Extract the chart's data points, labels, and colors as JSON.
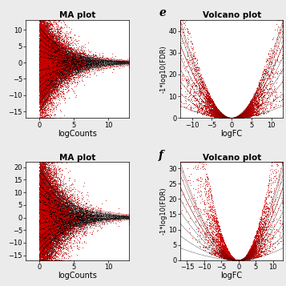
{
  "panels": [
    {
      "type": "MA",
      "title": "MA plot",
      "xlabel": "logCounts",
      "ylabel": "",
      "xlim": [
        -2,
        13
      ],
      "ylim": [
        -17,
        13
      ],
      "xticks": [
        0,
        5,
        10
      ],
      "yticks": [
        -15,
        -10,
        -5,
        0,
        5,
        10
      ],
      "n_black": 25000,
      "n_red": 8000,
      "seed": 42,
      "fan_max_y_top": 11,
      "fan_max_y_bot": -15,
      "label": null
    },
    {
      "type": "Volcano",
      "title": "Volcano plot",
      "xlabel": "logFC",
      "ylabel": "-1*log10(FDR)",
      "xlim": [
        -13,
        13
      ],
      "ylim": [
        0,
        45
      ],
      "xticks": [
        -10,
        -5,
        0,
        5,
        10
      ],
      "yticks": [
        0,
        10,
        20,
        30,
        40
      ],
      "n_black": 12000,
      "n_red": 10000,
      "seed": 43,
      "label": "e"
    },
    {
      "type": "MA",
      "title": "MA plot",
      "xlabel": "logCounts",
      "ylabel": "",
      "xlim": [
        -2,
        13
      ],
      "ylim": [
        -17,
        22
      ],
      "xticks": [
        0,
        5,
        10
      ],
      "yticks": [
        -15,
        -10,
        -5,
        0,
        5,
        10,
        15,
        20
      ],
      "n_black": 25000,
      "n_red": 8000,
      "seed": 44,
      "fan_max_y_top": 20,
      "fan_max_y_bot": -15,
      "label": null
    },
    {
      "type": "Volcano",
      "title": "Volcano plot",
      "xlabel": "logFC",
      "ylabel": "-1*log10(FDR)",
      "xlim": [
        -17,
        13
      ],
      "ylim": [
        0,
        32
      ],
      "xticks": [
        -15,
        -10,
        -5,
        0,
        5,
        10
      ],
      "yticks": [
        0,
        5,
        10,
        15,
        20,
        25,
        30
      ],
      "n_black": 12000,
      "n_red": 10000,
      "seed": 45,
      "label": "f"
    }
  ],
  "background_color": "#ebebeb",
  "plot_bg": "#ffffff",
  "black_color": "#000000",
  "red_color": "#cc0000",
  "point_size_black": 0.3,
  "point_size_red": 0.5,
  "title_fontsize": 7.5,
  "label_fontsize": 10,
  "tick_fontsize": 6,
  "axis_label_fontsize": 7
}
